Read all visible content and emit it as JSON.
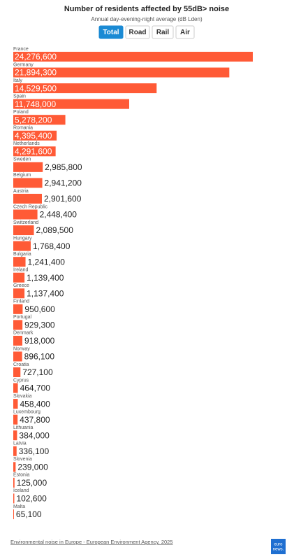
{
  "chart_data": {
    "type": "bar",
    "title": "Number of residents affected by 55dB> noise",
    "subtitle": "Annual day-evening-night average (dB Lden)",
    "categories": [
      "France",
      "Germany",
      "Italy",
      "Spain",
      "Poland",
      "Romania",
      "Netherlands",
      "Sweden",
      "Belgium",
      "Austria",
      "Czech Republic",
      "Switzerland",
      "Hungary",
      "Bulgaria",
      "Ireland",
      "Greece",
      "Finland",
      "Portugal",
      "Denmark",
      "Norway",
      "Croatia",
      "Cyprus",
      "Slovakia",
      "Luxembourg",
      "Lithuania",
      "Latvia",
      "Slovenia",
      "Estonia",
      "Iceland",
      "Malta"
    ],
    "values": [
      24276600,
      21894300,
      14529500,
      11748000,
      5278200,
      4395400,
      4291600,
      2985800,
      2941200,
      2901600,
      2448400,
      2089500,
      1768400,
      1241400,
      1139400,
      1137400,
      950600,
      929300,
      918000,
      896100,
      727100,
      464700,
      458400,
      437800,
      384000,
      336100,
      239000,
      125000,
      102600,
      65100
    ],
    "value_labels": [
      "24,276,600",
      "21,894,300",
      "14,529,500",
      "11,748,000",
      "5,278,200",
      "4,395,400",
      "4,291,600",
      "2,985,800",
      "2,941,200",
      "2,901,600",
      "2,448,400",
      "2,089,500",
      "1,768,400",
      "1,241,400",
      "1,139,400",
      "1,137,400",
      "950,600",
      "929,300",
      "918,000",
      "896,100",
      "727,100",
      "464,700",
      "458,400",
      "437,800",
      "384,000",
      "336,100",
      "239,000",
      "125,000",
      "102,600",
      "65,100"
    ],
    "color": "#ff5a36"
  },
  "tabs": [
    "Total",
    "Road",
    "Rail",
    "Air"
  ],
  "active_tab": 0,
  "source": "Environmental noise in Europe - European Environment Agency, 2025",
  "logo": [
    "euro",
    "news."
  ]
}
